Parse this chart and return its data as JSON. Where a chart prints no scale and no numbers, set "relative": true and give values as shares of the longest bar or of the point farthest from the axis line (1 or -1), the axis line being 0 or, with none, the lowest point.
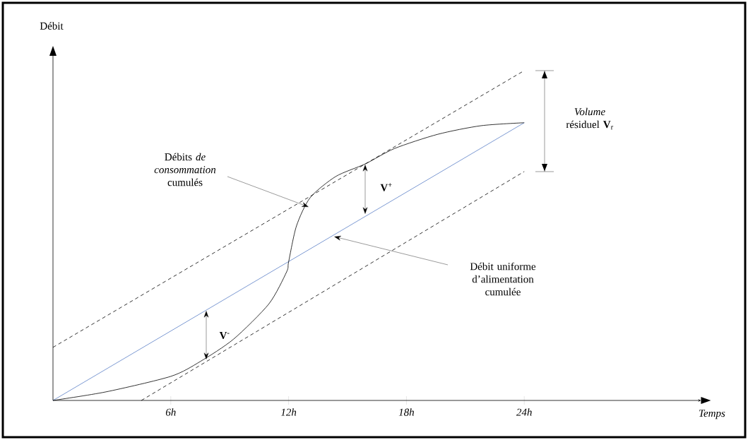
{
  "chart_data": {
    "type": "line",
    "relative": true,
    "xlabel": "Temps",
    "ylabel": "Débit",
    "xlim": [
      0,
      33
    ],
    "xticks": [
      {
        "value": 6,
        "label": "6h"
      },
      {
        "value": 12,
        "label": "12h"
      },
      {
        "value": 18,
        "label": "18h"
      },
      {
        "value": 24,
        "label": "24h"
      }
    ],
    "marker": "none",
    "series": [
      {
        "color": "#000000",
        "line_style": "dashed",
        "x": [
          0,
          24
        ],
        "values": [
          0.161,
          1
        ]
      },
      {
        "color": "#000000",
        "line_style": "dashed",
        "x": [
          4.5,
          24
        ],
        "values": [
          0,
          0.694
        ]
      },
      {
        "color": "#5b7fc7",
        "line_style": "solid",
        "x": [
          0,
          24
        ],
        "values": [
          0,
          0.842
        ]
      },
      {
        "color": "#000000",
        "line_style": "solid",
        "x": [
          0,
          2.7,
          6,
          7.5,
          9.2,
          11,
          11.9,
          12,
          12.4,
          13.1,
          14.4,
          15.9,
          17.4,
          19.6,
          21.8,
          24
        ],
        "values": [
          0,
          0.026,
          0.073,
          0.118,
          0.186,
          0.293,
          0.39,
          0.42,
          0.529,
          0.615,
          0.679,
          0.717,
          0.764,
          0.807,
          0.833,
          0.842
        ]
      }
    ],
    "annotations": [
      "Débits *de consommation* cumulés",
      "Débit uniforme d’alimentation cumulée",
      "*Volume* résiduel **V**$_{r}$",
      "V$^{+}$",
      "V$^{-}$"
    ]
  }
}
